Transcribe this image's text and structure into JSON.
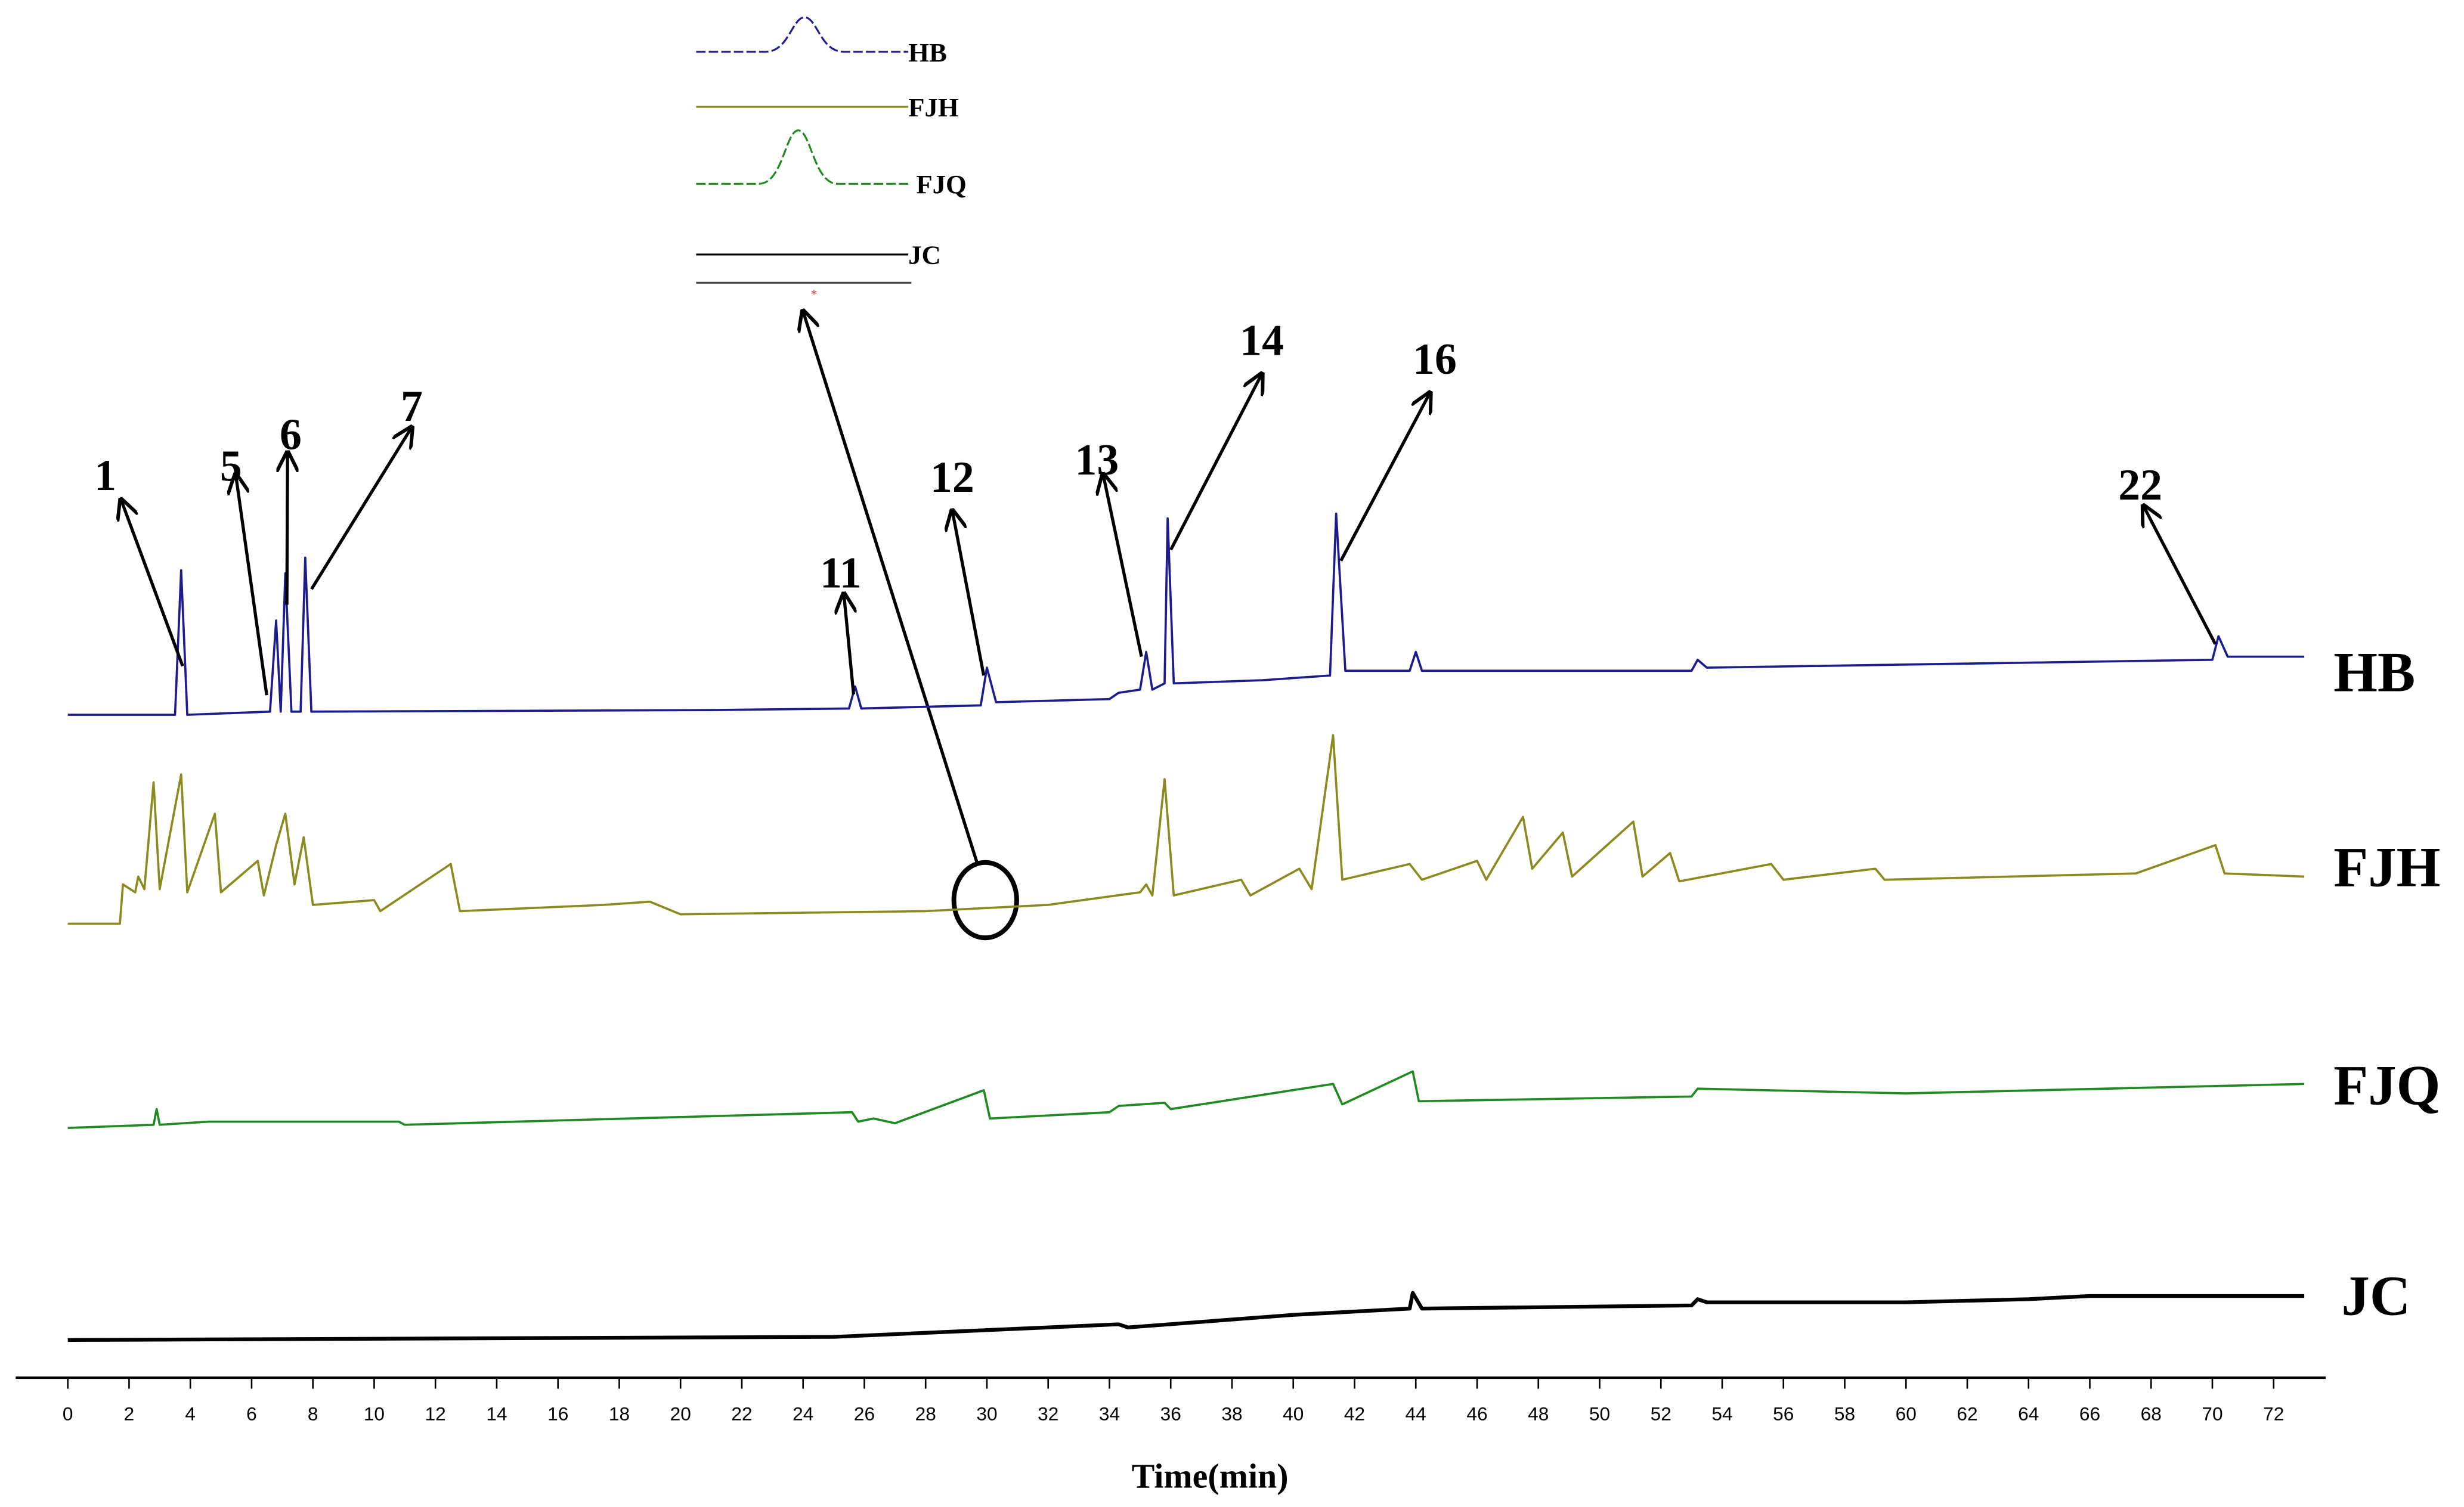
{
  "chart_data": {
    "type": "line",
    "xlabel": "Time(min)",
    "xlim": [
      -1.7,
      73.7
    ],
    "xticks": [
      0,
      2,
      4,
      6,
      8,
      10,
      12,
      14,
      16,
      18,
      20,
      22,
      24,
      26,
      28,
      30,
      32,
      34,
      36,
      38,
      40,
      42,
      44,
      46,
      48,
      50,
      52,
      54,
      56,
      58,
      60,
      62,
      64,
      66,
      68,
      70,
      72
    ],
    "legend": "top",
    "series": [
      {
        "name": "HB",
        "color": "#1c1c8f",
        "x": [
          0,
          3.5,
          3.7,
          3.9,
          6.6,
          6.8,
          6.95,
          7.1,
          7.3,
          7.6,
          7.75,
          7.95,
          21,
          25.5,
          25.7,
          25.9,
          29.8,
          30,
          30.3,
          34,
          34.3,
          35,
          35.2,
          35.4,
          35.8,
          35.9,
          36.1,
          39,
          41.2,
          41.4,
          41.7,
          43.8,
          44,
          44.2,
          53,
          53.2,
          53.5,
          70,
          70.2,
          70.5,
          73
        ],
        "values": [
          0,
          0,
          92,
          0,
          2,
          60,
          2,
          90,
          2,
          2,
          100,
          2,
          3,
          4,
          18,
          4,
          6,
          30,
          8,
          10,
          14,
          16,
          40,
          16,
          20,
          125,
          20,
          22,
          25,
          128,
          28,
          28,
          40,
          28,
          28,
          35,
          30,
          35,
          50,
          37,
          37
        ]
      },
      {
        "name": "FJH",
        "color": "#8a8a1e",
        "x": [
          0,
          1.7,
          1.8,
          2.2,
          2.3,
          2.5,
          2.8,
          3,
          3.7,
          3.9,
          4.8,
          5,
          6.2,
          6.4,
          6.8,
          7.1,
          7.4,
          7.7,
          8,
          10,
          10.2,
          12.5,
          12.8,
          17.5,
          19,
          20,
          28,
          32,
          35,
          35.2,
          35.4,
          35.8,
          36.1,
          38.3,
          38.6,
          40.2,
          40.6,
          41.3,
          41.6,
          43.8,
          44.2,
          46,
          46.3,
          47.5,
          47.8,
          48.8,
          49.1,
          51.1,
          51.4,
          52.3,
          52.6,
          55.6,
          56,
          59,
          59.3,
          67.5,
          70.1,
          70.4,
          73
        ],
        "values": [
          0,
          0,
          25,
          20,
          30,
          22,
          90,
          22,
          95,
          20,
          70,
          20,
          40,
          18,
          50,
          70,
          25,
          55,
          12,
          15,
          8,
          38,
          8,
          12,
          14,
          6,
          8,
          12,
          20,
          25,
          18,
          92,
          18,
          28,
          18,
          35,
          22,
          120,
          28,
          38,
          28,
          40,
          28,
          68,
          35,
          58,
          30,
          65,
          30,
          45,
          27,
          38,
          28,
          35,
          28,
          32,
          50,
          32,
          30
        ]
      },
      {
        "name": "FJQ",
        "color": "#1f8a1f",
        "x": [
          0,
          2.8,
          2.9,
          3,
          4.6,
          10.8,
          11,
          25.6,
          25.8,
          26.3,
          27,
          29.9,
          30.1,
          34,
          34.3,
          35.8,
          36,
          41.3,
          41.6,
          43.9,
          44.1,
          53,
          53.2,
          60,
          73
        ],
        "values": [
          0,
          2,
          12,
          2,
          4,
          4,
          2,
          10,
          4,
          6,
          3,
          24,
          6,
          10,
          14,
          16,
          12,
          28,
          15,
          36,
          17,
          20,
          25,
          22,
          28
        ]
      },
      {
        "name": "JC",
        "color": "#000000",
        "x": [
          0,
          25,
          34.3,
          34.6,
          40,
          43.8,
          43.9,
          44.2,
          53,
          53.2,
          53.5,
          60,
          64,
          66,
          73
        ],
        "values": [
          0,
          2,
          10,
          8,
          16,
          20,
          30,
          20,
          22,
          26,
          24,
          24,
          26,
          28,
          28
        ]
      }
    ],
    "annotations": [
      {
        "text": "1",
        "x": 3.8
      },
      {
        "text": "5",
        "x": 6.75
      },
      {
        "text": "6",
        "x": 7.1
      },
      {
        "text": "7",
        "x": 7.75
      },
      {
        "text": "11",
        "x": 25.7
      },
      {
        "text": "12",
        "x": 30
      },
      {
        "text": "13",
        "x": 35.2
      },
      {
        "text": "14",
        "x": 35.9
      },
      {
        "text": "16",
        "x": 41.4
      },
      {
        "text": "22",
        "x": 70.2
      }
    ]
  }
}
